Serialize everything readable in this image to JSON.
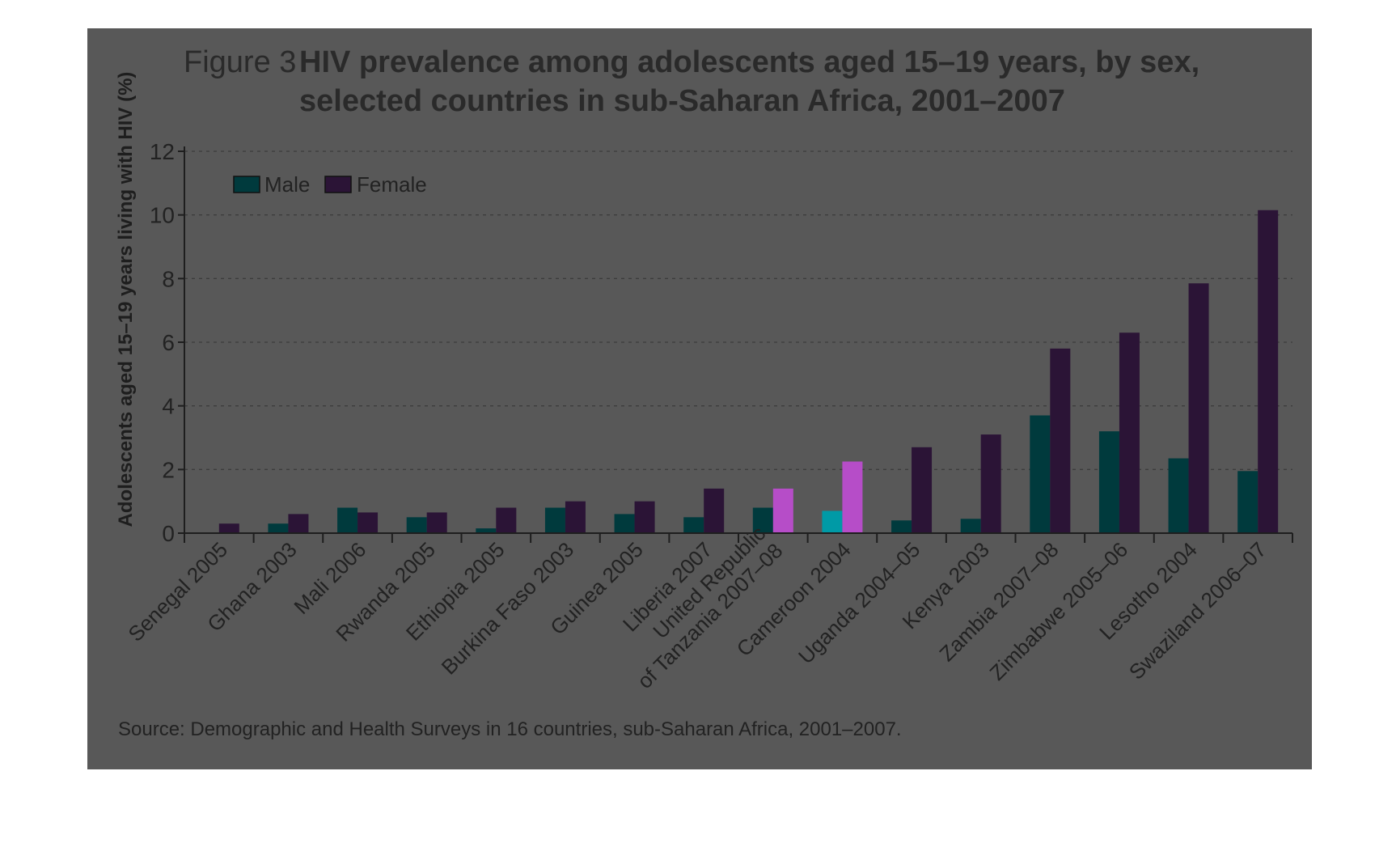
{
  "figure_number": "Figure 3",
  "title_lines": [
    "HIV prevalence among adolescents aged 15–19 years, by sex,",
    "selected countries in sub-Saharan Africa, 2001–2007"
  ],
  "source": "Source: Demographic and Health Surveys in 16 countries, sub-Saharan Africa, 2001–2007.",
  "colors": {
    "male": "#003a3d",
    "female": "#2b1436",
    "male_highlight": "#009aa6",
    "female_highlight": "#b64dc8",
    "panel": "#585858"
  },
  "chart_data": {
    "type": "bar",
    "ylabel": "Adolescents aged 15–19 years living with HIV (%)",
    "xlabel": "",
    "ylim": [
      0,
      12
    ],
    "yticks": [
      "0",
      "2",
      "4",
      "6",
      "8",
      "10",
      "12"
    ],
    "grid": true,
    "legend_position": "top-left",
    "categories": [
      [
        "Senegal 2005"
      ],
      [
        "Ghana 2003"
      ],
      [
        "Mali 2006"
      ],
      [
        "Rwanda 2005"
      ],
      [
        "Ethiopia 2005"
      ],
      [
        "Burkina Faso 2003"
      ],
      [
        "Guinea 2005"
      ],
      [
        "Liberia 2007"
      ],
      [
        "United Republic",
        "of Tanzania 2007–08"
      ],
      [
        "Cameroon 2004"
      ],
      [
        "Uganda 2004–05"
      ],
      [
        "Kenya 2003"
      ],
      [
        "Zambia 2007–08"
      ],
      [
        "Zimbabwe 2005–06"
      ],
      [
        "Lesotho 2004"
      ],
      [
        "Swaziland 2006–07"
      ]
    ],
    "series": [
      {
        "name": "Male",
        "values": [
          0.0,
          0.3,
          0.8,
          0.5,
          0.15,
          0.8,
          0.6,
          0.5,
          0.8,
          0.7,
          0.4,
          0.45,
          3.7,
          3.2,
          2.35,
          1.95
        ]
      },
      {
        "name": "Female",
        "values": [
          0.3,
          0.6,
          0.65,
          0.65,
          0.8,
          1.0,
          1.0,
          1.4,
          1.4,
          2.25,
          2.7,
          3.1,
          5.8,
          6.3,
          7.85,
          10.15
        ]
      }
    ]
  }
}
